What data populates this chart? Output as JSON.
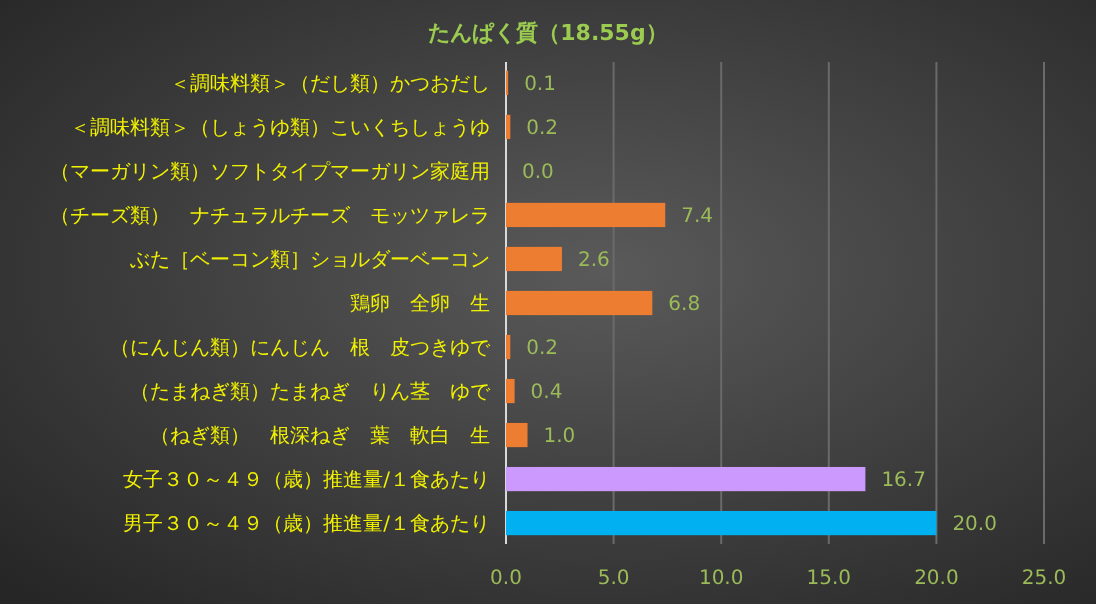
{
  "chart_data": {
    "type": "bar",
    "orientation": "horizontal",
    "title": "たんぱく質（18.55g）",
    "categories": [
      "＜調味料類＞（だし類）かつおだし",
      "＜調味料類＞（しょうゆ類）こいくちしょうゆ",
      "（マーガリン類）ソフトタイプマーガリン家庭用",
      "（チーズ類）　ナチュラルチーズ　モッツァレラ",
      "ぶた［ベーコン類］ショルダーベーコン",
      "鶏卵　全卵　生",
      "（にんじん類）にんじん　根　皮つきゆで",
      "（たまねぎ類）たまねぎ　りん茎　ゆで",
      "（ねぎ類）　根深ねぎ　葉　軟白　生",
      "女子３０～４９（歳）推進量/１食あたり",
      "男子３０～４９（歳）推進量/１食あたり"
    ],
    "values": [
      0.1,
      0.2,
      0.0,
      7.4,
      2.6,
      6.8,
      0.2,
      0.4,
      1.0,
      16.7,
      20.0
    ],
    "value_labels": [
      "0.1",
      "0.2",
      "0.0",
      "7.4",
      "2.6",
      "6.8",
      "0.2",
      "0.4",
      "1.0",
      "16.7",
      "20.0"
    ],
    "colors": [
      "#ed7d31",
      "#ed7d31",
      "#ed7d31",
      "#ed7d31",
      "#ed7d31",
      "#ed7d31",
      "#ed7d31",
      "#ed7d31",
      "#ed7d31",
      "#cc99ff",
      "#00b0f0"
    ],
    "xlim": [
      0,
      25
    ],
    "xticks": [
      {
        "value": 0,
        "label": "0.0"
      },
      {
        "value": 5,
        "label": "5.0"
      },
      {
        "value": 10,
        "label": "10.0"
      },
      {
        "value": 15,
        "label": "15.0"
      },
      {
        "value": 20,
        "label": "20.0"
      },
      {
        "value": 25,
        "label": "25.0"
      }
    ],
    "grid": "x"
  }
}
